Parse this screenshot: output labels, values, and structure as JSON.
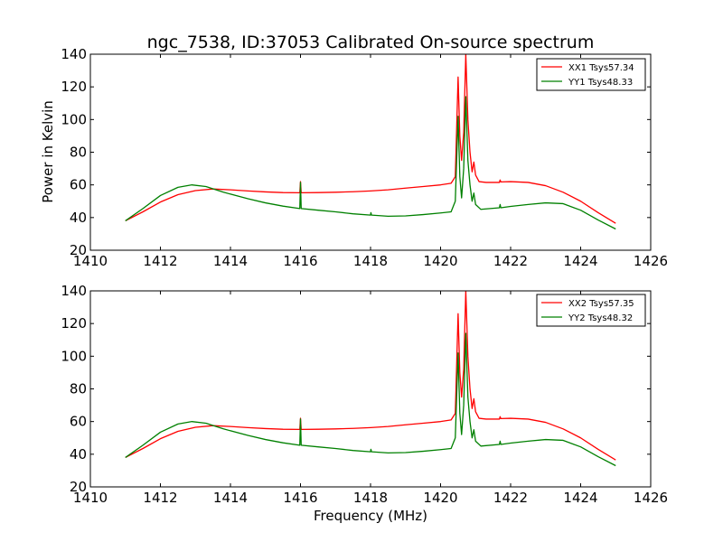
{
  "chart_data": [
    {
      "type": "line",
      "title": "ngc_7538, ID:37053 Calibrated On-source spectrum",
      "xlabel": "",
      "ylabel": "Power in Kelvin",
      "xlim": [
        1410,
        1426
      ],
      "ylim": [
        20,
        140
      ],
      "xticks": [
        1410,
        1412,
        1414,
        1416,
        1418,
        1420,
        1422,
        1424,
        1426
      ],
      "yticks": [
        20,
        40,
        60,
        80,
        100,
        120,
        140
      ],
      "grid": false,
      "legend": "top-right",
      "series": [
        {
          "name": "XX1 Tsys57.34",
          "color": "#ff0000",
          "points": [
            [
              1411.0,
              38.0
            ],
            [
              1411.5,
              43.5
            ],
            [
              1412.0,
              49.5
            ],
            [
              1412.5,
              54.0
            ],
            [
              1413.0,
              56.5
            ],
            [
              1413.5,
              57.5
            ],
            [
              1414.0,
              57.0
            ],
            [
              1414.5,
              56.3
            ],
            [
              1415.0,
              55.7
            ],
            [
              1415.5,
              55.3
            ],
            [
              1415.98,
              55.2
            ],
            [
              1416.0,
              62.0
            ],
            [
              1416.02,
              55.2
            ],
            [
              1416.5,
              55.3
            ],
            [
              1417.0,
              55.5
            ],
            [
              1417.5,
              55.8
            ],
            [
              1418.0,
              56.3
            ],
            [
              1418.5,
              57.0
            ],
            [
              1419.0,
              58.0
            ],
            [
              1419.5,
              59.0
            ],
            [
              1420.0,
              60.0
            ],
            [
              1420.3,
              61.0
            ],
            [
              1420.42,
              65.0
            ],
            [
              1420.5,
              126.0
            ],
            [
              1420.55,
              90.0
            ],
            [
              1420.6,
              75.0
            ],
            [
              1420.66,
              92.0
            ],
            [
              1420.72,
              140.0
            ],
            [
              1420.78,
              100.0
            ],
            [
              1420.84,
              80.0
            ],
            [
              1420.9,
              68.0
            ],
            [
              1420.95,
              74.0
            ],
            [
              1421.0,
              66.0
            ],
            [
              1421.1,
              62.0
            ],
            [
              1421.3,
              61.5
            ],
            [
              1421.68,
              61.5
            ],
            [
              1421.7,
              63.0
            ],
            [
              1421.72,
              61.8
            ],
            [
              1422.0,
              62.0
            ],
            [
              1422.5,
              61.5
            ],
            [
              1423.0,
              59.5
            ],
            [
              1423.5,
              55.5
            ],
            [
              1424.0,
              50.0
            ],
            [
              1424.5,
              43.0
            ],
            [
              1425.0,
              36.5
            ]
          ]
        },
        {
          "name": "YY1 Tsys48.33",
          "color": "#008000",
          "points": [
            [
              1411.0,
              38.0
            ],
            [
              1411.5,
              45.5
            ],
            [
              1412.0,
              53.5
            ],
            [
              1412.5,
              58.5
            ],
            [
              1412.9,
              60.0
            ],
            [
              1413.3,
              59.0
            ],
            [
              1413.8,
              55.5
            ],
            [
              1414.5,
              51.5
            ],
            [
              1415.0,
              49.0
            ],
            [
              1415.5,
              47.0
            ],
            [
              1415.98,
              45.5
            ],
            [
              1416.0,
              61.5
            ],
            [
              1416.02,
              45.5
            ],
            [
              1416.5,
              44.5
            ],
            [
              1417.0,
              43.5
            ],
            [
              1417.5,
              42.3
            ],
            [
              1418.0,
              41.5
            ],
            [
              1418.01,
              43.0
            ],
            [
              1418.03,
              41.5
            ],
            [
              1418.5,
              40.8
            ],
            [
              1419.0,
              41.0
            ],
            [
              1419.5,
              41.8
            ],
            [
              1420.0,
              42.8
            ],
            [
              1420.3,
              43.5
            ],
            [
              1420.42,
              50.0
            ],
            [
              1420.5,
              102.0
            ],
            [
              1420.55,
              65.0
            ],
            [
              1420.6,
              52.0
            ],
            [
              1420.66,
              70.0
            ],
            [
              1420.72,
              114.0
            ],
            [
              1420.78,
              75.0
            ],
            [
              1420.84,
              60.0
            ],
            [
              1420.9,
              50.0
            ],
            [
              1420.95,
              55.0
            ],
            [
              1421.0,
              48.0
            ],
            [
              1421.15,
              45.0
            ],
            [
              1421.68,
              46.0
            ],
            [
              1421.7,
              48.0
            ],
            [
              1421.72,
              46.0
            ],
            [
              1422.0,
              46.8
            ],
            [
              1422.5,
              48.0
            ],
            [
              1423.0,
              49.0
            ],
            [
              1423.5,
              48.5
            ],
            [
              1424.0,
              44.5
            ],
            [
              1424.5,
              38.5
            ],
            [
              1425.0,
              33.0
            ]
          ]
        }
      ]
    },
    {
      "type": "line",
      "title": "",
      "xlabel": "Frequency (MHz)",
      "ylabel": "",
      "xlim": [
        1410,
        1426
      ],
      "ylim": [
        20,
        140
      ],
      "xticks": [
        1410,
        1412,
        1414,
        1416,
        1418,
        1420,
        1422,
        1424,
        1426
      ],
      "yticks": [
        20,
        40,
        60,
        80,
        100,
        120,
        140
      ],
      "grid": false,
      "legend": "top-right",
      "series": [
        {
          "name": "XX2 Tsys57.35",
          "color": "#ff0000",
          "points": [
            [
              1411.0,
              38.0
            ],
            [
              1411.5,
              43.5
            ],
            [
              1412.0,
              49.5
            ],
            [
              1412.5,
              54.0
            ],
            [
              1413.0,
              56.5
            ],
            [
              1413.5,
              57.5
            ],
            [
              1414.0,
              57.0
            ],
            [
              1414.5,
              56.3
            ],
            [
              1415.0,
              55.7
            ],
            [
              1415.5,
              55.3
            ],
            [
              1415.98,
              55.2
            ],
            [
              1416.0,
              62.0
            ],
            [
              1416.02,
              55.2
            ],
            [
              1416.5,
              55.3
            ],
            [
              1417.0,
              55.5
            ],
            [
              1417.5,
              55.8
            ],
            [
              1418.0,
              56.3
            ],
            [
              1418.5,
              57.0
            ],
            [
              1419.0,
              58.0
            ],
            [
              1419.5,
              59.0
            ],
            [
              1420.0,
              60.0
            ],
            [
              1420.3,
              61.0
            ],
            [
              1420.42,
              65.0
            ],
            [
              1420.5,
              126.0
            ],
            [
              1420.55,
              90.0
            ],
            [
              1420.6,
              75.0
            ],
            [
              1420.66,
              92.0
            ],
            [
              1420.72,
              140.0
            ],
            [
              1420.78,
              100.0
            ],
            [
              1420.84,
              80.0
            ],
            [
              1420.9,
              68.0
            ],
            [
              1420.95,
              74.0
            ],
            [
              1421.0,
              66.0
            ],
            [
              1421.1,
              62.0
            ],
            [
              1421.3,
              61.5
            ],
            [
              1421.68,
              61.5
            ],
            [
              1421.7,
              63.0
            ],
            [
              1421.72,
              61.8
            ],
            [
              1422.0,
              62.0
            ],
            [
              1422.5,
              61.5
            ],
            [
              1423.0,
              59.5
            ],
            [
              1423.5,
              55.5
            ],
            [
              1424.0,
              50.0
            ],
            [
              1424.5,
              43.0
            ],
            [
              1425.0,
              36.5
            ]
          ]
        },
        {
          "name": "YY2 Tsys48.32",
          "color": "#008000",
          "points": [
            [
              1411.0,
              38.0
            ],
            [
              1411.5,
              45.5
            ],
            [
              1412.0,
              53.5
            ],
            [
              1412.5,
              58.5
            ],
            [
              1412.9,
              60.0
            ],
            [
              1413.3,
              59.0
            ],
            [
              1413.8,
              55.5
            ],
            [
              1414.5,
              51.5
            ],
            [
              1415.0,
              49.0
            ],
            [
              1415.5,
              47.0
            ],
            [
              1415.98,
              45.5
            ],
            [
              1416.0,
              61.5
            ],
            [
              1416.02,
              45.5
            ],
            [
              1416.5,
              44.5
            ],
            [
              1417.0,
              43.5
            ],
            [
              1417.5,
              42.3
            ],
            [
              1418.0,
              41.5
            ],
            [
              1418.01,
              43.0
            ],
            [
              1418.03,
              41.5
            ],
            [
              1418.5,
              40.8
            ],
            [
              1419.0,
              41.0
            ],
            [
              1419.5,
              41.8
            ],
            [
              1420.0,
              42.8
            ],
            [
              1420.3,
              43.5
            ],
            [
              1420.42,
              50.0
            ],
            [
              1420.5,
              102.0
            ],
            [
              1420.55,
              65.0
            ],
            [
              1420.6,
              52.0
            ],
            [
              1420.66,
              70.0
            ],
            [
              1420.72,
              114.0
            ],
            [
              1420.78,
              75.0
            ],
            [
              1420.84,
              60.0
            ],
            [
              1420.9,
              50.0
            ],
            [
              1420.95,
              55.0
            ],
            [
              1421.0,
              48.0
            ],
            [
              1421.15,
              45.0
            ],
            [
              1421.68,
              46.0
            ],
            [
              1421.7,
              48.0
            ],
            [
              1421.72,
              46.0
            ],
            [
              1422.0,
              46.8
            ],
            [
              1422.5,
              48.0
            ],
            [
              1423.0,
              49.0
            ],
            [
              1423.5,
              48.5
            ],
            [
              1424.0,
              44.5
            ],
            [
              1424.5,
              38.5
            ],
            [
              1425.0,
              33.0
            ]
          ]
        }
      ]
    }
  ]
}
